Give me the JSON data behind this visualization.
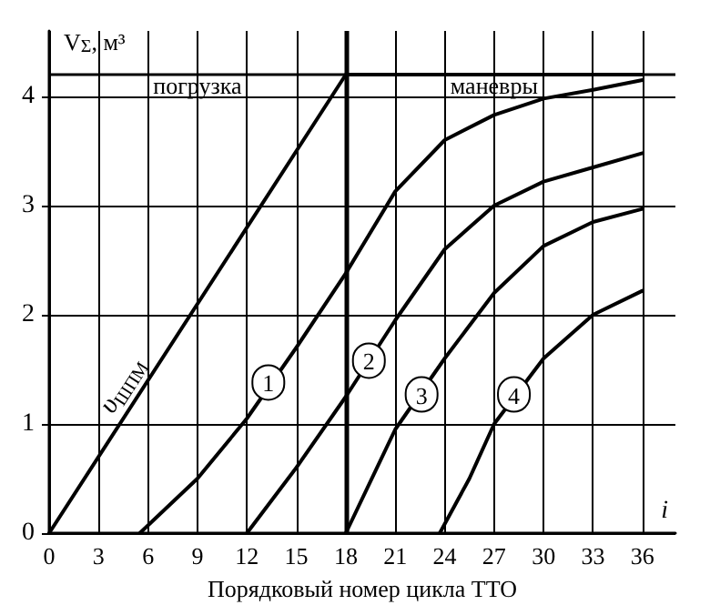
{
  "chart_data": {
    "type": "line",
    "xlabel": "Порядковый номер цикла ТТО",
    "ylabel": "V$_{Σ}$, м³",
    "xlim": [
      0,
      38
    ],
    "xticks": [
      0,
      3,
      6,
      9,
      12,
      15,
      18,
      21,
      24,
      27,
      30,
      33,
      36
    ],
    "ylim": [
      0,
      4.6
    ],
    "yticks": [
      0,
      1,
      2,
      3,
      4
    ],
    "grid": true,
    "legend": false,
    "marker": "none",
    "line_style": "solid",
    "series": [
      {
        "name": "υ$_{ШПМ}$",
        "color": "#000000",
        "x": [
          0,
          18,
          36
        ],
        "values": [
          0,
          4.2,
          4.2
        ]
      },
      {
        "color": "#000000",
        "x": [
          5.5,
          9,
          12,
          15,
          18,
          21,
          24,
          27,
          30,
          33,
          36
        ],
        "values": [
          0,
          0.5,
          1.05,
          1.7,
          2.38,
          3.13,
          3.6,
          3.83,
          3.98,
          4.06,
          4.15
        ]
      },
      {
        "color": "#000000",
        "x": [
          12,
          15,
          18,
          21,
          24,
          27,
          30,
          33,
          36
        ],
        "values": [
          0,
          0.6,
          1.25,
          1.95,
          2.6,
          3.0,
          3.22,
          3.35,
          3.48
        ]
      },
      {
        "color": "#000000",
        "x": [
          18,
          21,
          24,
          27,
          30,
          33,
          36
        ],
        "values": [
          0,
          0.95,
          1.6,
          2.2,
          2.63,
          2.85,
          2.97
        ]
      },
      {
        "color": "#000000",
        "x": [
          23.7,
          25.5,
          27,
          30,
          33,
          36
        ],
        "values": [
          0,
          0.5,
          1.0,
          1.6,
          2.0,
          2.22
        ]
      }
    ],
    "ref_lines": [
      {
        "axis": "x",
        "value": 18,
        "color": "#000000"
      },
      {
        "axis": "y",
        "value": 4.2,
        "color": "#000000"
      }
    ],
    "annotations": [
      "погрузка",
      "маневры",
      {
        "text": "1",
        "x": 13.3,
        "y": 1.38
      },
      {
        "text": "2",
        "x": 19.4,
        "y": 1.58
      },
      {
        "text": "3",
        "x": 22.6,
        "y": 1.27
      },
      {
        "text": "4",
        "x": 28.2,
        "y": 1.27
      },
      "i"
    ]
  }
}
